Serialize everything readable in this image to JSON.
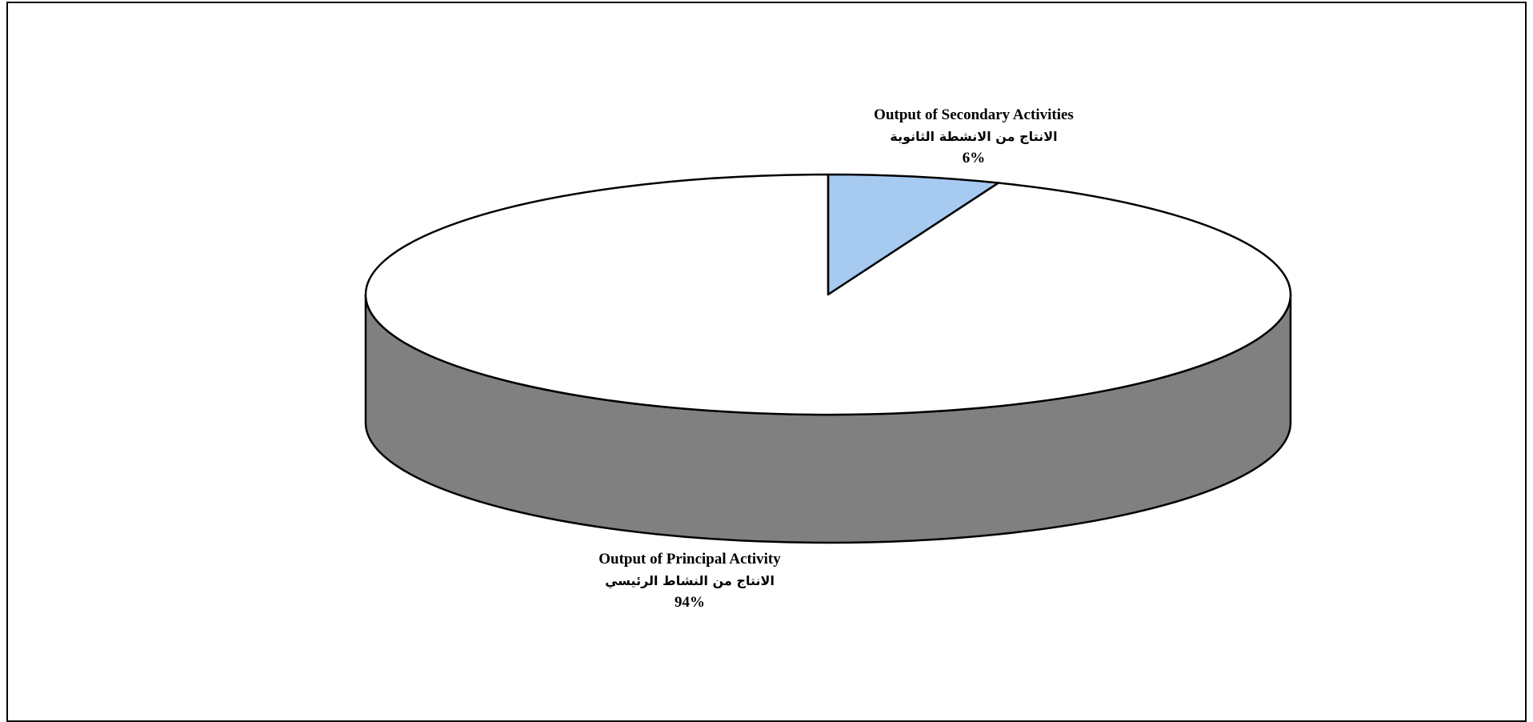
{
  "chart_data": {
    "type": "pie",
    "style": "3d",
    "slices": [
      {
        "name": "Output of Principal Activity",
        "name_ar": "الانتاج من النشاط الرئيسي",
        "value": 94,
        "label": "94%",
        "color": "#ffffff",
        "side_color": "#808080"
      },
      {
        "name": "Output of Secondary Activities",
        "name_ar": "الانتاج من الانشطة الثانوية",
        "value": 6,
        "label": "6%",
        "color": "#a6caf0",
        "side_color": "#6e8aa8"
      }
    ],
    "title": "",
    "legend": "none"
  }
}
